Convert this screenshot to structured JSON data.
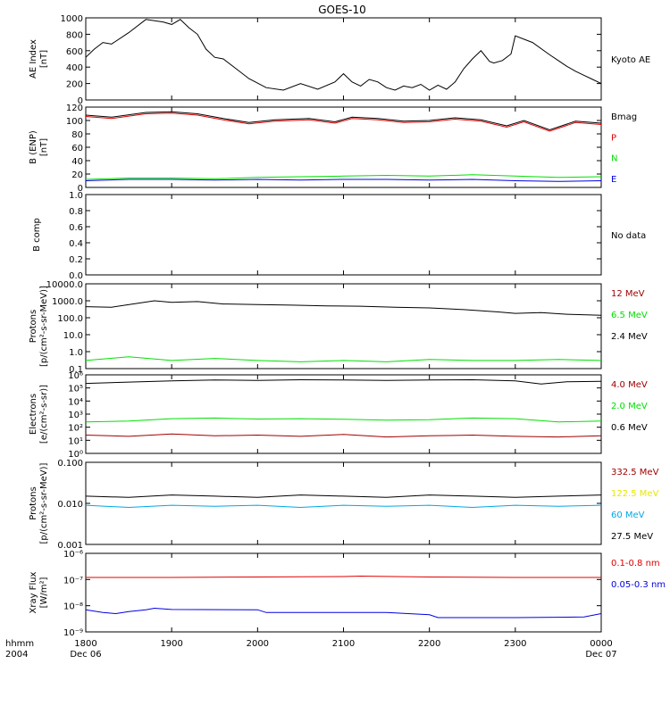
{
  "title": "GOES-10",
  "time_axis": {
    "label_top": "hhmm",
    "label_bottom": "2004",
    "ticks": [
      {
        "hhmm": "1800",
        "date": "Dec 06"
      },
      {
        "hhmm": "1900",
        "date": ""
      },
      {
        "hhmm": "2000",
        "date": ""
      },
      {
        "hhmm": "2100",
        "date": ""
      },
      {
        "hhmm": "2200",
        "date": ""
      },
      {
        "hhmm": "2300",
        "date": ""
      },
      {
        "hhmm": "0000",
        "date": "Dec 07"
      }
    ]
  },
  "colors": {
    "black": "#000000",
    "red": "#e00000",
    "green": "#00e000",
    "blue": "#0000e0",
    "darkred": "#a00000",
    "yellow": "#e8e800",
    "cyan": "#00a8e8"
  },
  "chart_data": [
    {
      "type": "line",
      "panel": "ae",
      "ylabel": [
        "AE Index",
        "[nT]"
      ],
      "ylim": [
        0,
        1000
      ],
      "yticks": [
        "0",
        "200",
        "400",
        "600",
        "800",
        "1000"
      ],
      "legend": [
        {
          "label": "Kyoto AE",
          "color": "#000000"
        }
      ],
      "series": [
        {
          "name": "Kyoto AE",
          "color": "#000000",
          "x": [
            0,
            0.1,
            0.2,
            0.3,
            0.5,
            0.7,
            0.9,
            1.0,
            1.1,
            1.2,
            1.3,
            1.4,
            1.5,
            1.6,
            1.75,
            1.9,
            2.1,
            2.3,
            2.5,
            2.7,
            2.9,
            3.0,
            3.1,
            3.2,
            3.3,
            3.4,
            3.5,
            3.6,
            3.7,
            3.8,
            3.9,
            4.0,
            4.1,
            4.2,
            4.3,
            4.4,
            4.5,
            4.6,
            4.7,
            4.75,
            4.85,
            4.95,
            5.0,
            5.2,
            5.4,
            5.5,
            5.6,
            5.7,
            5.8,
            5.9,
            6.0
          ],
          "values": [
            520,
            620,
            700,
            680,
            820,
            980,
            950,
            920,
            980,
            880,
            800,
            620,
            520,
            500,
            380,
            260,
            150,
            120,
            200,
            130,
            220,
            320,
            220,
            170,
            250,
            220,
            150,
            120,
            170,
            150,
            190,
            120,
            180,
            130,
            220,
            380,
            500,
            600,
            470,
            450,
            480,
            560,
            780,
            700,
            550,
            480,
            410,
            350,
            300,
            250,
            200
          ]
        }
      ]
    },
    {
      "type": "line",
      "panel": "bfield",
      "ylabel": [
        "B (ENP)",
        "[nT]"
      ],
      "ylim": [
        0,
        120
      ],
      "yticks": [
        "0",
        "20",
        "40",
        "60",
        "80",
        "100",
        "120"
      ],
      "legend": [
        {
          "label": "Bmag",
          "color": "#000000"
        },
        {
          "label": "P",
          "color": "#e00000"
        },
        {
          "label": "N",
          "color": "#00e000"
        },
        {
          "label": "E",
          "color": "#0000e0"
        }
      ],
      "series": [
        {
          "name": "Bmag",
          "color": "#000000",
          "x": [
            0,
            0.3,
            0.7,
            1.0,
            1.3,
            1.6,
            1.9,
            2.2,
            2.6,
            2.9,
            3.1,
            3.4,
            3.7,
            4.0,
            4.3,
            4.6,
            4.9,
            5.1,
            5.4,
            5.7,
            6.0
          ],
          "values": [
            108,
            105,
            112,
            113,
            110,
            103,
            97,
            101,
            103,
            98,
            105,
            103,
            99,
            100,
            104,
            101,
            92,
            100,
            86,
            99,
            96
          ]
        },
        {
          "name": "P",
          "color": "#e00000",
          "x": [
            0,
            0.3,
            0.7,
            1.0,
            1.3,
            1.6,
            1.9,
            2.2,
            2.6,
            2.9,
            3.1,
            3.4,
            3.7,
            4.0,
            4.3,
            4.6,
            4.9,
            5.1,
            5.4,
            5.7,
            6.0
          ],
          "values": [
            106,
            103,
            110,
            111,
            108,
            101,
            95,
            99,
            101,
            96,
            103,
            101,
            97,
            98,
            102,
            99,
            90,
            98,
            84,
            97,
            94
          ]
        },
        {
          "name": "N",
          "color": "#00e000",
          "x": [
            0,
            0.5,
            1.0,
            1.5,
            2.0,
            2.5,
            3.0,
            3.5,
            4.0,
            4.5,
            5.0,
            5.5,
            6.0
          ],
          "values": [
            12,
            14,
            14,
            13,
            15,
            16,
            17,
            18,
            17,
            19,
            17,
            15,
            16
          ]
        },
        {
          "name": "E",
          "color": "#0000e0",
          "x": [
            0,
            0.5,
            1.0,
            1.5,
            2.0,
            2.5,
            3.0,
            3.5,
            4.0,
            4.5,
            5.0,
            5.5,
            6.0
          ],
          "values": [
            10,
            12,
            12,
            11,
            12,
            11,
            12,
            12,
            11,
            12,
            10,
            9,
            10
          ]
        }
      ]
    },
    {
      "type": "line",
      "panel": "bcomp",
      "ylabel": [
        "B comp"
      ],
      "ylim": [
        0,
        1
      ],
      "yticks": [
        "0.0",
        "0.2",
        "0.4",
        "0.6",
        "0.8",
        "1.0"
      ],
      "legend": [
        {
          "label": "No data",
          "color": "#000000"
        }
      ],
      "series": []
    },
    {
      "type": "line",
      "panel": "protons_low",
      "ylabel": [
        "Protons",
        "[p/(cm²-s-sr-MeV)]"
      ],
      "yscale": "log",
      "ylim": [
        0.1,
        10000
      ],
      "yticks": [
        "0.1",
        "1.0",
        "10.0",
        "100.0",
        "1000.0",
        "10000.0"
      ],
      "legend": [
        {
          "label": "12 MeV",
          "color": "#a00000"
        },
        {
          "label": "6.5 MeV",
          "color": "#00e000"
        },
        {
          "label": "2.4 MeV",
          "color": "#000000"
        }
      ],
      "series": [
        {
          "name": "2.4 MeV",
          "color": "#000000",
          "x": [
            0,
            0.3,
            0.6,
            0.8,
            1.0,
            1.3,
            1.6,
            2.0,
            2.4,
            2.8,
            3.2,
            3.6,
            4.0,
            4.4,
            4.8,
            5.0,
            5.3,
            5.6,
            6.0
          ],
          "values": [
            450,
            420,
            700,
            1000,
            800,
            900,
            650,
            600,
            550,
            500,
            480,
            420,
            380,
            300,
            220,
            180,
            200,
            160,
            140
          ]
        },
        {
          "name": "6.5 MeV",
          "color": "#00e000",
          "x": [
            0,
            0.5,
            1.0,
            1.5,
            2.0,
            2.5,
            3.0,
            3.5,
            4.0,
            4.5,
            5.0,
            5.5,
            6.0
          ],
          "values": [
            0.3,
            0.5,
            0.3,
            0.4,
            0.3,
            0.25,
            0.3,
            0.25,
            0.35,
            0.3,
            0.3,
            0.35,
            0.3
          ]
        }
      ]
    },
    {
      "type": "line",
      "panel": "electrons",
      "ylabel": [
        "Electrons",
        "[e/(cm²-s-sr)]"
      ],
      "yscale": "log",
      "ylim": [
        1,
        1000000
      ],
      "yticks": [
        "10⁰",
        "10¹",
        "10²",
        "10³",
        "10⁴",
        "10⁵",
        "10⁶"
      ],
      "legend": [
        {
          "label": "4.0 MeV",
          "color": "#a00000"
        },
        {
          "label": "2.0 MeV",
          "color": "#00e000"
        },
        {
          "label": "0.6 MeV",
          "color": "#000000"
        }
      ],
      "series": [
        {
          "name": "0.6 MeV",
          "color": "#000000",
          "x": [
            0,
            0.5,
            1.0,
            1.5,
            2.0,
            2.5,
            3.0,
            3.5,
            4.0,
            4.5,
            5.0,
            5.3,
            5.6,
            6.0
          ],
          "values": [
            220000,
            280000,
            350000,
            400000,
            380000,
            420000,
            400000,
            380000,
            400000,
            420000,
            350000,
            200000,
            300000,
            320000
          ]
        },
        {
          "name": "2.0 MeV",
          "color": "#00e000",
          "x": [
            0,
            0.5,
            1.0,
            1.5,
            2.0,
            2.5,
            3.0,
            3.5,
            4.0,
            4.5,
            5.0,
            5.5,
            6.0
          ],
          "values": [
            250,
            300,
            450,
            500,
            420,
            450,
            400,
            350,
            380,
            500,
            450,
            250,
            300
          ]
        },
        {
          "name": "4.0 MeV",
          "color": "#a00000",
          "x": [
            0,
            0.5,
            1.0,
            1.5,
            2.0,
            2.5,
            3.0,
            3.5,
            4.0,
            4.5,
            5.0,
            5.5,
            6.0
          ],
          "values": [
            25,
            20,
            30,
            22,
            25,
            20,
            28,
            18,
            22,
            25,
            20,
            18,
            22
          ]
        }
      ]
    },
    {
      "type": "line",
      "panel": "protons_high",
      "ylabel": [
        "Protons",
        "[p/(cm²-s-sr-MeV)]"
      ],
      "yscale": "log",
      "ylim": [
        0.001,
        0.1
      ],
      "yticks": [
        "0.001",
        "0.010",
        "0.100"
      ],
      "legend": [
        {
          "label": "332.5 MeV",
          "color": "#a00000"
        },
        {
          "label": "122.5 MeV",
          "color": "#e8e800"
        },
        {
          "label": "60 MeV",
          "color": "#00a8e8"
        },
        {
          "label": "27.5 MeV",
          "color": "#000000"
        }
      ],
      "series": [
        {
          "name": "27.5 MeV",
          "color": "#000000",
          "x": [
            0,
            0.5,
            1.0,
            1.5,
            2.0,
            2.5,
            3.0,
            3.5,
            4.0,
            4.5,
            5.0,
            5.5,
            6.0
          ],
          "values": [
            0.015,
            0.014,
            0.016,
            0.015,
            0.014,
            0.016,
            0.015,
            0.014,
            0.016,
            0.015,
            0.014,
            0.015,
            0.016
          ]
        },
        {
          "name": "60 MeV",
          "color": "#00a8e8",
          "x": [
            0,
            0.5,
            1.0,
            1.5,
            2.0,
            2.5,
            3.0,
            3.5,
            4.0,
            4.5,
            5.0,
            5.5,
            6.0
          ],
          "values": [
            0.009,
            0.008,
            0.009,
            0.0085,
            0.009,
            0.008,
            0.009,
            0.0085,
            0.009,
            0.008,
            0.009,
            0.0085,
            0.009
          ]
        }
      ]
    },
    {
      "type": "line",
      "panel": "xray",
      "ylabel": [
        "Xray Flux",
        "[W/m²]"
      ],
      "yscale": "log",
      "ylim": [
        1e-09,
        1e-06
      ],
      "yticks": [
        "10⁻⁹",
        "10⁻⁸",
        "10⁻⁷",
        "10⁻⁶"
      ],
      "legend": [
        {
          "label": "0.1-0.8 nm",
          "color": "#e00000"
        },
        {
          "label": "0.05-0.3 nm",
          "color": "#0000e0"
        }
      ],
      "series": [
        {
          "name": "0.1-0.8 nm",
          "color": "#e00000",
          "x": [
            0,
            1.0,
            2.0,
            3.0,
            3.2,
            4.0,
            5.0,
            6.0
          ],
          "values": [
            1.2e-07,
            1.2e-07,
            1.25e-07,
            1.3e-07,
            1.35e-07,
            1.25e-07,
            1.2e-07,
            1.2e-07
          ]
        },
        {
          "name": "0.05-0.3 nm",
          "color": "#0000e0",
          "x": [
            0,
            0.2,
            0.35,
            0.5,
            0.7,
            0.8,
            1.0,
            2.0,
            2.1,
            3.5,
            4.0,
            4.1,
            5.0,
            5.8,
            6.0
          ],
          "values": [
            7e-09,
            5.5e-09,
            5e-09,
            6e-09,
            7e-09,
            8e-09,
            7.2e-09,
            7e-09,
            5.5e-09,
            5.5e-09,
            4.5e-09,
            3.5e-09,
            3.5e-09,
            3.7e-09,
            5e-09
          ]
        }
      ]
    }
  ]
}
